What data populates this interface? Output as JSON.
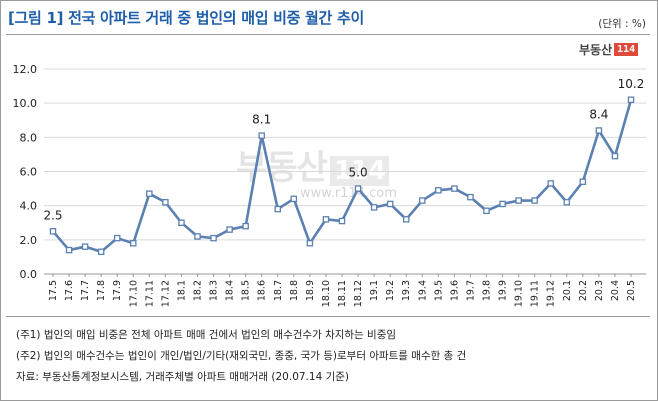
{
  "header": {
    "title": "[그림 1] 전국 아파트 거래 중 법인의 매입 비중 월간 추이",
    "unit": "(단위 : %)"
  },
  "logo": {
    "text": "부동산",
    "number": "114"
  },
  "watermark": {
    "text": "부동산",
    "number": "114",
    "url": "www.r114.com"
  },
  "colors": {
    "line": "#5b80b2",
    "marker_fill": "#ffffff",
    "title": "#1f5ea8",
    "grid": "#d9d9d9"
  },
  "chart_data": {
    "type": "line",
    "title": "",
    "xlabel": "",
    "ylabel": "",
    "ylim": [
      0,
      12
    ],
    "yticks": [
      "0.0",
      "2.0",
      "4.0",
      "6.0",
      "8.0",
      "10.0",
      "12.0"
    ],
    "grid": true,
    "categories": [
      "17.5",
      "17.6",
      "17.7",
      "17.8",
      "17.9",
      "17.10",
      "17.11",
      "17.12",
      "18.1",
      "18.2",
      "18.3",
      "18.4",
      "18.5",
      "18.6",
      "18.7",
      "18.8",
      "18.9",
      "18.10",
      "18.11",
      "18.12",
      "19.1",
      "19.2",
      "19.3",
      "19.4",
      "19.5",
      "19.6",
      "19.7",
      "19.8",
      "19.9",
      "19.10",
      "19.11",
      "19.12",
      "20.1",
      "20.2",
      "20.3",
      "20.4",
      "20.5"
    ],
    "series": [
      {
        "values": [
          2.5,
          1.4,
          1.6,
          1.3,
          2.1,
          1.8,
          4.7,
          4.2,
          3.0,
          2.2,
          2.1,
          2.6,
          2.8,
          8.1,
          3.8,
          4.4,
          1.8,
          3.2,
          3.1,
          5.0,
          3.9,
          4.1,
          3.2,
          4.3,
          4.9,
          5.0,
          4.5,
          3.7,
          4.1,
          4.3,
          4.3,
          5.3,
          4.2,
          5.4,
          8.4,
          6.9,
          10.2
        ]
      }
    ],
    "data_labels": [
      {
        "index": 0,
        "text": "2.5"
      },
      {
        "index": 13,
        "text": "8.1"
      },
      {
        "index": 19,
        "text": "5.0"
      },
      {
        "index": 34,
        "text": "8.4"
      },
      {
        "index": 36,
        "text": "10.2"
      }
    ]
  },
  "notes": [
    "(주1) 법인의 매입 비중은 전체 아파트 매매 건에서 법인의 매수건수가 차지하는 비중임",
    "(주2) 법인의 매수건수는 법인이 개인/법인/기타(재외국민, 종중, 국가 등)로부터 아파트를 매수한 총 건",
    "자료: 부동산통계정보시스템, 거래주체별 아파트 매매거래 (20.07.14 기준)"
  ]
}
